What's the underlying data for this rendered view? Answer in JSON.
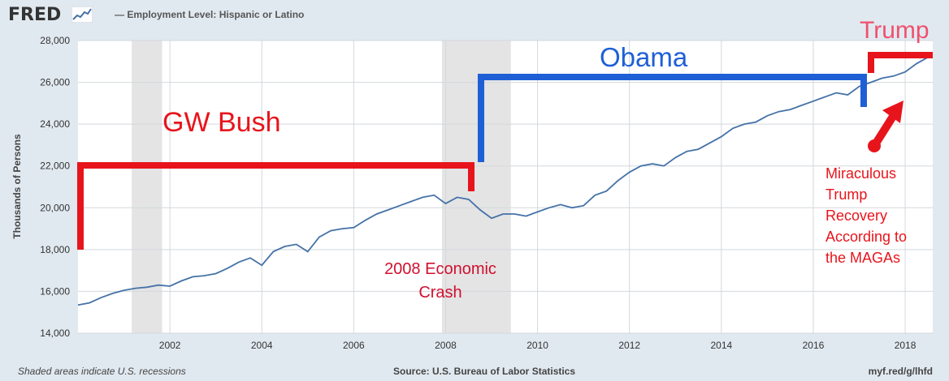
{
  "header": {
    "logo": "FRED",
    "legend_label": "— Employment Level: Hispanic or Latino",
    "series_color": "#4572a7"
  },
  "footer": {
    "left": "Shaded areas indicate U.S. recessions",
    "source": "Source: U.S. Bureau of Labor Statistics",
    "url": "myf.red/g/lhfd"
  },
  "annotations": {
    "bush": "GW Bush",
    "obama": "Obama",
    "trump": "Trump",
    "crash_line1": "2008 Economic",
    "crash_line2": "Crash",
    "magas": [
      "Miraculous",
      "Trump",
      "Recovery",
      "According to",
      "the MAGAs"
    ],
    "red": "#e8141b",
    "blue": "#1f5fd6",
    "trump_label_color": "#f0506e"
  },
  "chart_data": {
    "type": "line",
    "ylabel": "Thousands of Persons",
    "xlabel": "",
    "xlim": [
      2000.0,
      2018.6
    ],
    "ylim": [
      14000,
      28000
    ],
    "x_ticks": [
      2002,
      2004,
      2006,
      2008,
      2010,
      2012,
      2014,
      2016,
      2018
    ],
    "y_ticks": [
      14000,
      16000,
      18000,
      20000,
      22000,
      24000,
      26000,
      28000
    ],
    "grid": true,
    "recessions": [
      [
        2001.17,
        2001.83
      ],
      [
        2007.92,
        2009.42
      ]
    ],
    "series": [
      {
        "name": "Employment Level: Hispanic or Latino",
        "x": [
          2000.0,
          2000.25,
          2000.5,
          2000.75,
          2001.0,
          2001.25,
          2001.5,
          2001.75,
          2002.0,
          2002.25,
          2002.5,
          2002.75,
          2003.0,
          2003.25,
          2003.5,
          2003.75,
          2004.0,
          2004.25,
          2004.5,
          2004.75,
          2005.0,
          2005.25,
          2005.5,
          2005.75,
          2006.0,
          2006.25,
          2006.5,
          2006.75,
          2007.0,
          2007.25,
          2007.5,
          2007.75,
          2008.0,
          2008.25,
          2008.5,
          2008.75,
          2009.0,
          2009.25,
          2009.5,
          2009.75,
          2010.0,
          2010.25,
          2010.5,
          2010.75,
          2011.0,
          2011.25,
          2011.5,
          2011.75,
          2012.0,
          2012.25,
          2012.5,
          2012.75,
          2013.0,
          2013.25,
          2013.5,
          2013.75,
          2014.0,
          2014.25,
          2014.5,
          2014.75,
          2015.0,
          2015.25,
          2015.5,
          2015.75,
          2016.0,
          2016.25,
          2016.5,
          2016.75,
          2017.0,
          2017.25,
          2017.5,
          2017.75,
          2018.0,
          2018.25,
          2018.5
        ],
        "values": [
          15350,
          15450,
          15700,
          15900,
          16050,
          16150,
          16200,
          16300,
          16250,
          16500,
          16700,
          16750,
          16850,
          17100,
          17400,
          17600,
          17250,
          17900,
          18150,
          18250,
          17900,
          18600,
          18900,
          19000,
          19050,
          19400,
          19700,
          19900,
          20100,
          20300,
          20500,
          20600,
          20200,
          20500,
          20400,
          19900,
          19500,
          19700,
          19700,
          19600,
          19800,
          20000,
          20150,
          20000,
          20100,
          20600,
          20800,
          21300,
          21700,
          22000,
          22100,
          22000,
          22400,
          22700,
          22800,
          23100,
          23400,
          23800,
          24000,
          24100,
          24400,
          24600,
          24700,
          24900,
          25100,
          25300,
          25500,
          25400,
          25800,
          26000,
          26200,
          26300,
          26500,
          26900,
          27200
        ]
      }
    ]
  }
}
